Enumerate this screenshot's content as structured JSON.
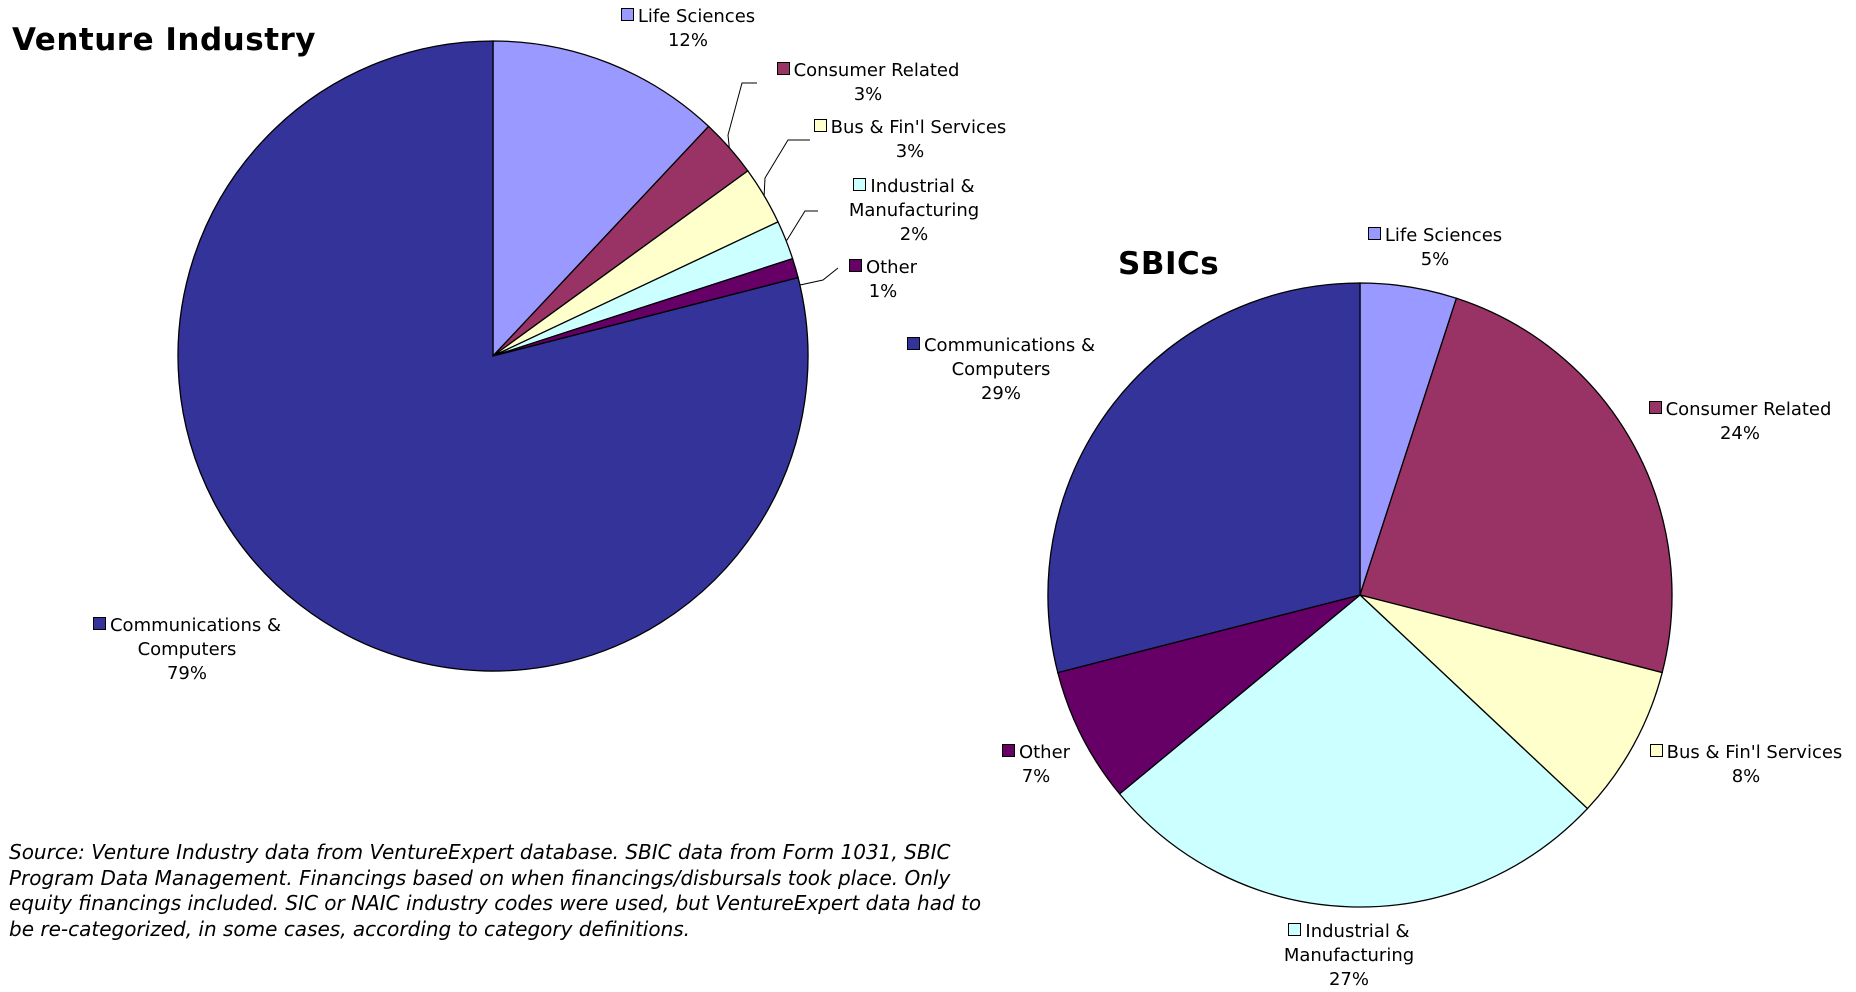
{
  "chart_data": [
    {
      "type": "pie",
      "title": "Venture Industry",
      "categories": [
        "Life Sciences",
        "Consumer Related",
        "Bus & Fin'l Services",
        "Industrial & Manufacturing",
        "Other",
        "Communications & Computers"
      ],
      "values": [
        12,
        3,
        3,
        2,
        1,
        79
      ],
      "value_labels": [
        "12%",
        "3%",
        "3%",
        "2%",
        "1%",
        "79%"
      ],
      "colors": [
        "#9999ff",
        "#993366",
        "#ffffcc",
        "#ccffff",
        "#660066",
        "#333399"
      ]
    },
    {
      "type": "pie",
      "title": "SBICs",
      "categories": [
        "Life Sciences",
        "Consumer Related",
        "Bus & Fin'l Services",
        "Industrial & Manufacturing",
        "Other",
        "Communications & Computers"
      ],
      "values": [
        5,
        24,
        8,
        27,
        7,
        29
      ],
      "value_labels": [
        "5%",
        "24%",
        "8%",
        "27%",
        "7%",
        "29%"
      ],
      "colors": [
        "#9999ff",
        "#993366",
        "#ffffcc",
        "#ccffff",
        "#660066",
        "#333399"
      ]
    }
  ],
  "source_note": "Source: Venture Industry data from VentureExpert database.  SBIC data from Form 1031, SBIC Program Data Management.  Financings based on when financings/disbursals took place.  Only equity financings included.  SIC or NAIC industry codes were used, but VentureExpert data had to be re-categorized, in some cases, according to category definitions."
}
